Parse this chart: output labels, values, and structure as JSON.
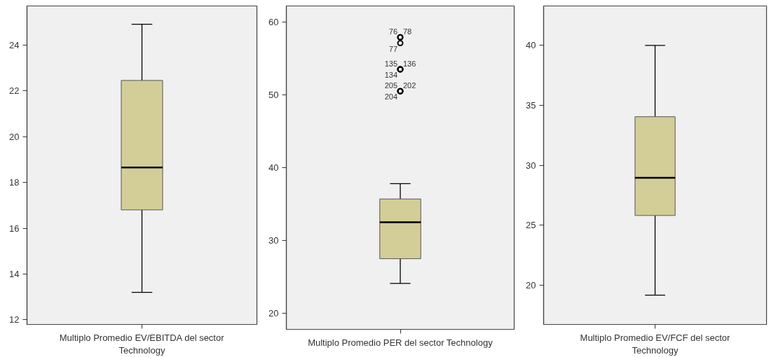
{
  "chart_data": [
    {
      "type": "box",
      "categories": [
        "Multiplo Promedio EV/EBITDA del sector Technology"
      ],
      "ylim": [
        11.8,
        25.7
      ],
      "yticks": [
        12,
        14,
        16,
        18,
        20,
        22,
        24
      ],
      "grid": false,
      "colors": [
        "#d3ce98"
      ],
      "boxes": [
        {
          "low": 13.2,
          "q1": 16.8,
          "median": 18.65,
          "q3": 22.45,
          "high": 24.9
        }
      ]
    },
    {
      "type": "box",
      "categories": [
        "Multiplo Promedio PER del sector Technology"
      ],
      "ylim": [
        17.8,
        62.2
      ],
      "yticks": [
        20,
        30,
        40,
        50,
        60
      ],
      "grid": false,
      "colors": [
        "#d3ce98"
      ],
      "boxes": [
        {
          "low": 24.1,
          "q1": 27.5,
          "median": 32.5,
          "q3": 35.7,
          "high": 37.8
        }
      ],
      "series": [
        {
          "type": "scatter",
          "marker": "circle",
          "color": "#000000",
          "x": [
            "Multiplo Promedio PER del sector Technology",
            "Multiplo Promedio PER del sector Technology",
            "Multiplo Promedio PER del sector Technology",
            "Multiplo Promedio PER del sector Technology",
            "Multiplo Promedio PER del sector Technology",
            "Multiplo Promedio PER del sector Technology",
            "Multiplo Promedio PER del sector Technology",
            "Multiplo Promedio PER del sector Technology",
            "Multiplo Promedio PER del sector Technology"
          ],
          "values": [
            57.9,
            57.9,
            57.1,
            53.5,
            53.5,
            53.5,
            50.5,
            50.5,
            50.5
          ]
        }
      ],
      "annotations": [
        {
          "text": "76",
          "x": "Multiplo Promedio PER del sector Technology",
          "y": 57.9
        },
        {
          "text": "78",
          "x": "Multiplo Promedio PER del sector Technology",
          "y": 57.9
        },
        {
          "text": "77",
          "x": "Multiplo Promedio PER del sector Technology",
          "y": 57.1
        },
        {
          "text": "135",
          "x": "Multiplo Promedio PER del sector Technology",
          "y": 53.5
        },
        {
          "text": "136",
          "x": "Multiplo Promedio PER del sector Technology",
          "y": 53.5
        },
        {
          "text": "134",
          "x": "Multiplo Promedio PER del sector Technology",
          "y": 53.5
        },
        {
          "text": "205",
          "x": "Multiplo Promedio PER del sector Technology",
          "y": 50.5
        },
        {
          "text": "202",
          "x": "Multiplo Promedio PER del sector Technology",
          "y": 50.5
        },
        {
          "text": "204",
          "x": "Multiplo Promedio PER del sector Technology",
          "y": 50.5
        }
      ]
    },
    {
      "type": "box",
      "categories": [
        "Multiplo Promedio EV/FCF del sector Technology"
      ],
      "ylim": [
        16.7,
        43.3
      ],
      "yticks": [
        20,
        25,
        30,
        35,
        40
      ],
      "grid": false,
      "colors": [
        "#d3ce98"
      ],
      "boxes": [
        {
          "low": 19.15,
          "q1": 25.8,
          "median": 28.95,
          "q3": 34.05,
          "high": 40.0
        }
      ]
    }
  ]
}
